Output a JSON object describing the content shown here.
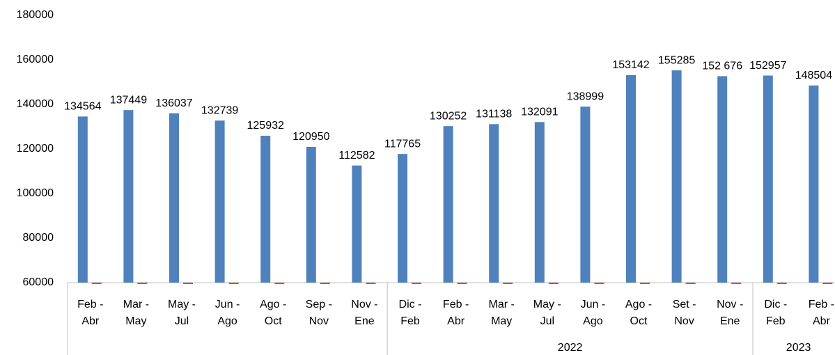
{
  "chart_data": {
    "type": "bar",
    "categories": [
      [
        "Feb -",
        "Abr"
      ],
      [
        "Mar -",
        "May"
      ],
      [
        "May -",
        "Jul"
      ],
      [
        "Jun -",
        "Ago"
      ],
      [
        "Ago -",
        "Oct"
      ],
      [
        "Sep -",
        "Nov"
      ],
      [
        "Nov -",
        "Ene"
      ],
      [
        "Dic -",
        "Feb"
      ],
      [
        "Feb -",
        "Abr"
      ],
      [
        "Mar -",
        "May"
      ],
      [
        "May -",
        "Jul"
      ],
      [
        "Jun -",
        "Ago"
      ],
      [
        "Ago -",
        "Oct"
      ],
      [
        "Set -",
        "Nov"
      ],
      [
        "Nov -",
        "Ene"
      ],
      [
        "Dic -",
        "Feb"
      ],
      [
        "Feb -",
        "Abr"
      ]
    ],
    "groups": [
      {
        "label": null,
        "count": 7
      },
      {
        "label": "2022",
        "count": 8
      },
      {
        "label": "2023",
        "count": 2
      }
    ],
    "values": [
      134564,
      137449,
      136037,
      132739,
      125932,
      120950,
      112582,
      117765,
      130252,
      131138,
      132091,
      138999,
      153142,
      155285,
      152676,
      152957,
      148504
    ],
    "value_labels": [
      "134564",
      "137449",
      "136037",
      "132739",
      "125932",
      "120950",
      "112582",
      "117765",
      "130252",
      "131138",
      "132091",
      "138999",
      "153142",
      "155285",
      "152 676",
      "152957",
      "148504"
    ],
    "color": "#4f81bd",
    "ylim": [
      60000,
      180000
    ],
    "yticks": [
      60000,
      80000,
      100000,
      120000,
      140000,
      160000,
      180000
    ],
    "grid": false
  }
}
